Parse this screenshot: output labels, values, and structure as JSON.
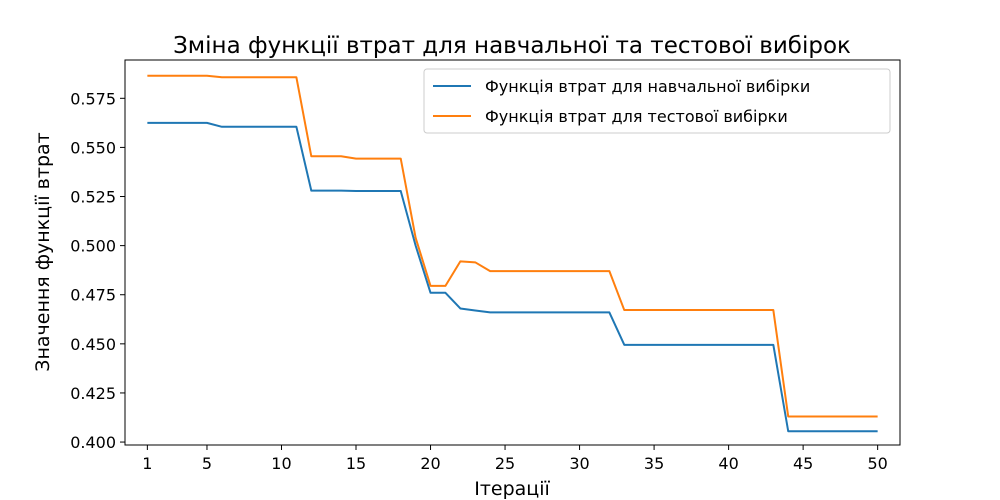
{
  "chart_data": {
    "type": "line",
    "title": "Зміна функції втрат для навчальної та тестової вибірок",
    "xlabel": "Ітерації",
    "ylabel": "Значення функції втрат",
    "xlim": [
      -0.5,
      51.5
    ],
    "ylim": [
      0.3985,
      0.5945
    ],
    "x_ticks": [
      1,
      5,
      10,
      15,
      20,
      25,
      30,
      35,
      40,
      45,
      50
    ],
    "y_ticks": [
      0.4,
      0.425,
      0.45,
      0.475,
      0.5,
      0.525,
      0.55,
      0.575
    ],
    "y_tick_labels": [
      "0.400",
      "0.425",
      "0.450",
      "0.475",
      "0.500",
      "0.525",
      "0.550",
      "0.575"
    ],
    "grid": false,
    "legend_position": "top-right",
    "x": [
      1,
      2,
      3,
      4,
      5,
      6,
      7,
      8,
      9,
      10,
      11,
      12,
      13,
      14,
      15,
      16,
      17,
      18,
      19,
      20,
      21,
      22,
      23,
      24,
      25,
      26,
      27,
      28,
      29,
      30,
      31,
      32,
      33,
      34,
      35,
      36,
      37,
      38,
      39,
      40,
      41,
      42,
      43,
      44,
      45,
      46,
      47,
      48,
      49,
      50
    ],
    "series": [
      {
        "name": "Функція втрат для навчальної вибірки",
        "color": "#1f77b4",
        "values": [
          0.5625,
          0.5625,
          0.5625,
          0.5625,
          0.5625,
          0.5605,
          0.5605,
          0.5605,
          0.5605,
          0.5605,
          0.5605,
          0.528,
          0.528,
          0.528,
          0.5278,
          0.5278,
          0.5278,
          0.5278,
          0.5,
          0.476,
          0.476,
          0.468,
          0.467,
          0.466,
          0.466,
          0.466,
          0.466,
          0.466,
          0.466,
          0.466,
          0.466,
          0.466,
          0.4495,
          0.4495,
          0.4495,
          0.4495,
          0.4495,
          0.4495,
          0.4495,
          0.4495,
          0.4495,
          0.4495,
          0.4495,
          0.4055,
          0.4055,
          0.4055,
          0.4055,
          0.4055,
          0.4055,
          0.4055
        ]
      },
      {
        "name": "Функція втрат для тестової вибірки",
        "color": "#ff7f0e",
        "values": [
          0.5865,
          0.5865,
          0.5865,
          0.5865,
          0.5865,
          0.5857,
          0.5857,
          0.5857,
          0.5857,
          0.5857,
          0.5857,
          0.5455,
          0.5455,
          0.5455,
          0.5443,
          0.5443,
          0.5443,
          0.5443,
          0.504,
          0.4795,
          0.4795,
          0.492,
          0.4915,
          0.487,
          0.487,
          0.487,
          0.487,
          0.487,
          0.487,
          0.487,
          0.487,
          0.487,
          0.4672,
          0.4672,
          0.4672,
          0.4672,
          0.4672,
          0.4672,
          0.4672,
          0.4672,
          0.4672,
          0.4672,
          0.4672,
          0.413,
          0.413,
          0.413,
          0.413,
          0.413,
          0.413,
          0.413
        ]
      }
    ]
  }
}
